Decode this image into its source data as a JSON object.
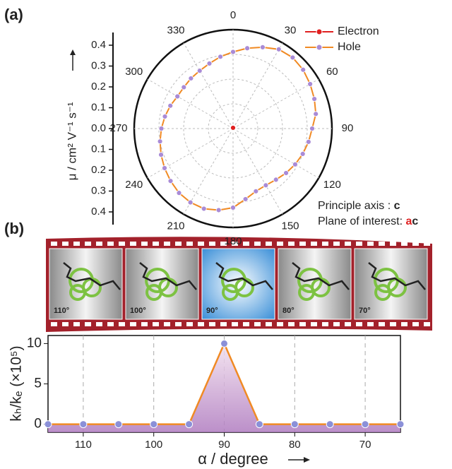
{
  "chart_data": [
    {
      "type": "polar",
      "panel": "(a)",
      "rlabel": "μ / cm² V⁻¹ s⁻¹",
      "theta": [
        0,
        10,
        20,
        30,
        40,
        50,
        60,
        70,
        80,
        90,
        100,
        110,
        120,
        130,
        140,
        150,
        160,
        170,
        180,
        190,
        200,
        210,
        220,
        230,
        240,
        250,
        260,
        270,
        280,
        290,
        300,
        310,
        320,
        330,
        340,
        350
      ],
      "series": [
        {
          "name": "Electron",
          "color": "#e02020",
          "values": [
            0.003,
            0.003,
            0.003,
            0.003,
            0.003,
            0.003,
            0.003,
            0.003,
            0.003,
            0.003,
            0.003,
            0.003,
            0.003,
            0.003,
            0.003,
            0.003,
            0.003,
            0.003,
            0.003,
            0.003,
            0.003,
            0.003,
            0.003,
            0.003,
            0.003,
            0.003,
            0.003,
            0.003,
            0.003,
            0.003,
            0.003,
            0.003,
            0.003,
            0.003,
            0.003,
            0.003
          ]
        },
        {
          "name": "Hole",
          "color": "#f08a24",
          "marker_color": "#a98bd6",
          "values": [
            0.31,
            0.33,
            0.35,
            0.37,
            0.375,
            0.37,
            0.36,
            0.35,
            0.34,
            0.32,
            0.31,
            0.3,
            0.29,
            0.28,
            0.27,
            0.265,
            0.27,
            0.29,
            0.32,
            0.335,
            0.345,
            0.345,
            0.34,
            0.33,
            0.32,
            0.31,
            0.3,
            0.29,
            0.28,
            0.27,
            0.26,
            0.26,
            0.265,
            0.27,
            0.28,
            0.295
          ]
        }
      ],
      "rlim": [
        0,
        0.4
      ],
      "rticks": [
        {
          "value": 0,
          "label": "0.0"
        },
        0.1,
        0.2,
        0.3,
        0.4
      ],
      "thetaticks": [
        0,
        30,
        60,
        90,
        120,
        150,
        180,
        210,
        240,
        270,
        300,
        330
      ],
      "grid": true,
      "legend": "upper right",
      "annotations": {
        "principle_label": "Principle axis : ",
        "principle_value": "c",
        "plane_label": "Plane of interest: ",
        "plane_value": [
          "a",
          "c"
        ]
      }
    },
    {
      "type": "line",
      "panel": "(b)",
      "frames": [
        "110°",
        "100°",
        "90°",
        "80°",
        "70°"
      ],
      "x": [
        115,
        110,
        105,
        100,
        95,
        90,
        85,
        80,
        75,
        70,
        65
      ],
      "values": [
        0,
        0,
        0,
        0,
        0,
        10,
        0,
        0,
        0,
        0,
        0
      ],
      "color": "#f08a24",
      "marker_color": "#8b90d8",
      "xlim": [
        115,
        65
      ],
      "xticks": [
        110,
        100,
        90,
        80,
        70
      ],
      "ylim": [
        -1,
        11
      ],
      "yticks": [
        0,
        5,
        10
      ],
      "xlabel": "α / degree",
      "ylabel": "kₕ/kₑ (×10⁵)",
      "grid": "x"
    }
  ]
}
